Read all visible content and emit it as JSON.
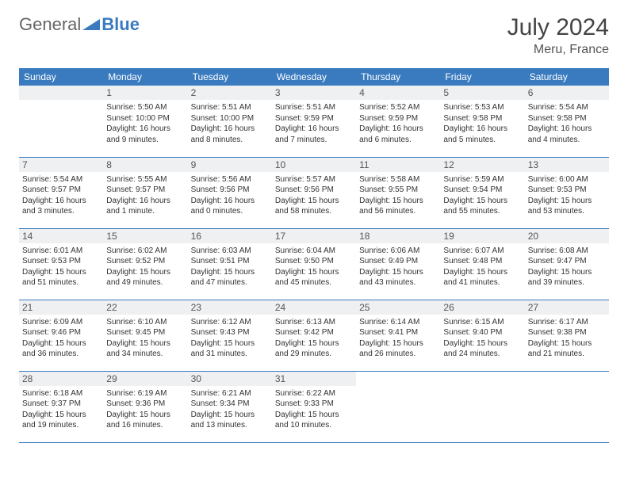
{
  "brand": {
    "part1": "General",
    "part2": "Blue"
  },
  "title": {
    "month": "July 2024",
    "location": "Meru, France"
  },
  "colors": {
    "header_bg": "#3a7bbf",
    "daynum_bg": "#eef0f2",
    "border": "#3a7bbf"
  },
  "weekdays": [
    "Sunday",
    "Monday",
    "Tuesday",
    "Wednesday",
    "Thursday",
    "Friday",
    "Saturday"
  ],
  "start_offset": 1,
  "days": [
    {
      "n": "1",
      "sunrise": "5:50 AM",
      "sunset": "10:00 PM",
      "daylight": "16 hours and 9 minutes."
    },
    {
      "n": "2",
      "sunrise": "5:51 AM",
      "sunset": "10:00 PM",
      "daylight": "16 hours and 8 minutes."
    },
    {
      "n": "3",
      "sunrise": "5:51 AM",
      "sunset": "9:59 PM",
      "daylight": "16 hours and 7 minutes."
    },
    {
      "n": "4",
      "sunrise": "5:52 AM",
      "sunset": "9:59 PM",
      "daylight": "16 hours and 6 minutes."
    },
    {
      "n": "5",
      "sunrise": "5:53 AM",
      "sunset": "9:58 PM",
      "daylight": "16 hours and 5 minutes."
    },
    {
      "n": "6",
      "sunrise": "5:54 AM",
      "sunset": "9:58 PM",
      "daylight": "16 hours and 4 minutes."
    },
    {
      "n": "7",
      "sunrise": "5:54 AM",
      "sunset": "9:57 PM",
      "daylight": "16 hours and 3 minutes."
    },
    {
      "n": "8",
      "sunrise": "5:55 AM",
      "sunset": "9:57 PM",
      "daylight": "16 hours and 1 minute."
    },
    {
      "n": "9",
      "sunrise": "5:56 AM",
      "sunset": "9:56 PM",
      "daylight": "16 hours and 0 minutes."
    },
    {
      "n": "10",
      "sunrise": "5:57 AM",
      "sunset": "9:56 PM",
      "daylight": "15 hours and 58 minutes."
    },
    {
      "n": "11",
      "sunrise": "5:58 AM",
      "sunset": "9:55 PM",
      "daylight": "15 hours and 56 minutes."
    },
    {
      "n": "12",
      "sunrise": "5:59 AM",
      "sunset": "9:54 PM",
      "daylight": "15 hours and 55 minutes."
    },
    {
      "n": "13",
      "sunrise": "6:00 AM",
      "sunset": "9:53 PM",
      "daylight": "15 hours and 53 minutes."
    },
    {
      "n": "14",
      "sunrise": "6:01 AM",
      "sunset": "9:53 PM",
      "daylight": "15 hours and 51 minutes."
    },
    {
      "n": "15",
      "sunrise": "6:02 AM",
      "sunset": "9:52 PM",
      "daylight": "15 hours and 49 minutes."
    },
    {
      "n": "16",
      "sunrise": "6:03 AM",
      "sunset": "9:51 PM",
      "daylight": "15 hours and 47 minutes."
    },
    {
      "n": "17",
      "sunrise": "6:04 AM",
      "sunset": "9:50 PM",
      "daylight": "15 hours and 45 minutes."
    },
    {
      "n": "18",
      "sunrise": "6:06 AM",
      "sunset": "9:49 PM",
      "daylight": "15 hours and 43 minutes."
    },
    {
      "n": "19",
      "sunrise": "6:07 AM",
      "sunset": "9:48 PM",
      "daylight": "15 hours and 41 minutes."
    },
    {
      "n": "20",
      "sunrise": "6:08 AM",
      "sunset": "9:47 PM",
      "daylight": "15 hours and 39 minutes."
    },
    {
      "n": "21",
      "sunrise": "6:09 AM",
      "sunset": "9:46 PM",
      "daylight": "15 hours and 36 minutes."
    },
    {
      "n": "22",
      "sunrise": "6:10 AM",
      "sunset": "9:45 PM",
      "daylight": "15 hours and 34 minutes."
    },
    {
      "n": "23",
      "sunrise": "6:12 AM",
      "sunset": "9:43 PM",
      "daylight": "15 hours and 31 minutes."
    },
    {
      "n": "24",
      "sunrise": "6:13 AM",
      "sunset": "9:42 PM",
      "daylight": "15 hours and 29 minutes."
    },
    {
      "n": "25",
      "sunrise": "6:14 AM",
      "sunset": "9:41 PM",
      "daylight": "15 hours and 26 minutes."
    },
    {
      "n": "26",
      "sunrise": "6:15 AM",
      "sunset": "9:40 PM",
      "daylight": "15 hours and 24 minutes."
    },
    {
      "n": "27",
      "sunrise": "6:17 AM",
      "sunset": "9:38 PM",
      "daylight": "15 hours and 21 minutes."
    },
    {
      "n": "28",
      "sunrise": "6:18 AM",
      "sunset": "9:37 PM",
      "daylight": "15 hours and 19 minutes."
    },
    {
      "n": "29",
      "sunrise": "6:19 AM",
      "sunset": "9:36 PM",
      "daylight": "15 hours and 16 minutes."
    },
    {
      "n": "30",
      "sunrise": "6:21 AM",
      "sunset": "9:34 PM",
      "daylight": "15 hours and 13 minutes."
    },
    {
      "n": "31",
      "sunrise": "6:22 AM",
      "sunset": "9:33 PM",
      "daylight": "15 hours and 10 minutes."
    }
  ],
  "labels": {
    "sunrise": "Sunrise: ",
    "sunset": "Sunset: ",
    "daylight": "Daylight: "
  }
}
